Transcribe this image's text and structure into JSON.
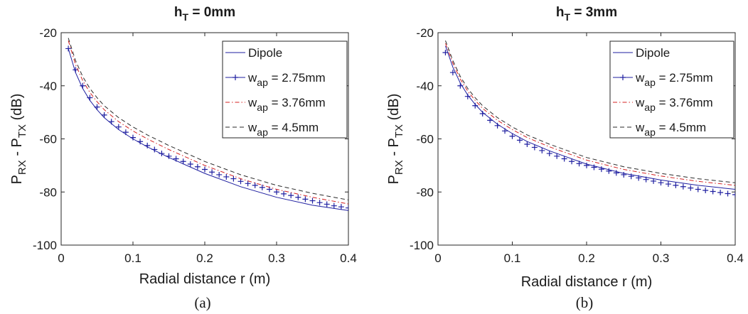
{
  "chart_data": [
    {
      "type": "line",
      "title": "h_T = 0mm",
      "title_main": "h",
      "title_sub": "T",
      "title_rest": " = 0mm",
      "xlabel": "Radial distance r (m)",
      "ylabel_parts": [
        "P",
        "RX",
        " - P",
        "TX",
        " (dB)"
      ],
      "caption": "(a)",
      "xlim": [
        0,
        0.4
      ],
      "ylim": [
        -100,
        -20
      ],
      "x_ticks": [
        "0",
        "0.1",
        "0.2",
        "0.3",
        "0.4"
      ],
      "y_ticks": [
        "-20",
        "-40",
        "-60",
        "-80",
        "-100"
      ],
      "grid": false,
      "legend_position": "top-right",
      "series": [
        {
          "name": "Dipole",
          "label_main": "Dipole",
          "label_sub": "",
          "label_rest": "",
          "color": "#1f1fa0",
          "style": "solid",
          "x": [
            0.01,
            0.02,
            0.03,
            0.04,
            0.05,
            0.06,
            0.08,
            0.1,
            0.12,
            0.15,
            0.2,
            0.25,
            0.3,
            0.35,
            0.4
          ],
          "y": [
            -26,
            -35,
            -41,
            -45.5,
            -49,
            -52,
            -56.5,
            -60,
            -63,
            -67,
            -73,
            -78,
            -82,
            -85,
            -87
          ]
        },
        {
          "name": "w_ap = 2.75mm",
          "label_main": "w",
          "label_sub": "ap",
          "label_rest": " = 2.75mm",
          "color": "#1f1fa0",
          "style": "plus",
          "x": [
            0.01,
            0.02,
            0.03,
            0.04,
            0.05,
            0.06,
            0.07,
            0.08,
            0.09,
            0.1,
            0.11,
            0.12,
            0.13,
            0.14,
            0.15,
            0.16,
            0.17,
            0.18,
            0.19,
            0.2,
            0.21,
            0.22,
            0.23,
            0.24,
            0.25,
            0.26,
            0.27,
            0.28,
            0.29,
            0.3,
            0.31,
            0.32,
            0.33,
            0.34,
            0.35,
            0.36,
            0.37,
            0.38,
            0.39,
            0.4
          ],
          "y": [
            -26,
            -34,
            -40,
            -44.5,
            -48,
            -51,
            -53.5,
            -55.5,
            -57.5,
            -59.5,
            -61,
            -62.5,
            -64,
            -65.5,
            -66.5,
            -67.5,
            -68.5,
            -69.5,
            -70.5,
            -71.5,
            -72.5,
            -73.5,
            -74.3,
            -75,
            -76,
            -76.8,
            -77.5,
            -78.3,
            -79,
            -80,
            -80.7,
            -81.3,
            -82,
            -82.7,
            -83.3,
            -84,
            -84.6,
            -85.2,
            -85.6,
            -86
          ]
        },
        {
          "name": "w_ap = 3.76mm",
          "label_main": "w",
          "label_sub": "ap",
          "label_rest": " = 3.76mm",
          "color": "#d42020",
          "style": "dashdot",
          "x": [
            0.01,
            0.02,
            0.03,
            0.04,
            0.05,
            0.06,
            0.08,
            0.1,
            0.12,
            0.15,
            0.2,
            0.25,
            0.3,
            0.35,
            0.4
          ],
          "y": [
            -23,
            -32,
            -38,
            -42.5,
            -46,
            -49,
            -53.5,
            -57,
            -60,
            -64,
            -70,
            -75,
            -79,
            -82,
            -84.5
          ]
        },
        {
          "name": "w_ap = 4.5mm",
          "label_main": "w",
          "label_sub": "ap",
          "label_rest": " = 4.5mm",
          "color": "#2a2a2a",
          "style": "dashed",
          "x": [
            0.01,
            0.02,
            0.03,
            0.04,
            0.05,
            0.06,
            0.08,
            0.1,
            0.12,
            0.15,
            0.2,
            0.25,
            0.3,
            0.35,
            0.4
          ],
          "y": [
            -22,
            -30.5,
            -36.5,
            -41,
            -44.5,
            -47.5,
            -52,
            -55.5,
            -58.5,
            -62.5,
            -68.5,
            -73.5,
            -77.5,
            -80.5,
            -83
          ]
        }
      ]
    },
    {
      "type": "line",
      "title": "h_T = 3mm",
      "title_main": "h",
      "title_sub": "T",
      "title_rest": " = 3mm",
      "xlabel": "Radial distance r (m)",
      "ylabel_parts": [
        "P",
        "RX",
        " - P",
        "TX",
        " (dB)"
      ],
      "caption": "(b)",
      "xlim": [
        0,
        0.4
      ],
      "ylim": [
        -100,
        -20
      ],
      "x_ticks": [
        "0",
        "0.1",
        "0.2",
        "0.3",
        "0.4"
      ],
      "y_ticks": [
        "-20",
        "-40",
        "-60",
        "-80",
        "-100"
      ],
      "grid": false,
      "legend_position": "top-right",
      "series": [
        {
          "name": "Dipole",
          "label_main": "Dipole",
          "label_sub": "",
          "label_rest": "",
          "color": "#1f1fa0",
          "style": "solid",
          "x": [
            0.01,
            0.02,
            0.03,
            0.04,
            0.05,
            0.06,
            0.08,
            0.1,
            0.12,
            0.15,
            0.2,
            0.25,
            0.3,
            0.35,
            0.4
          ],
          "y": [
            -25,
            -33,
            -39,
            -43.5,
            -47,
            -50,
            -54.5,
            -58,
            -61,
            -64.5,
            -69.5,
            -73,
            -75.5,
            -77.5,
            -79
          ]
        },
        {
          "name": "w_ap = 2.75mm",
          "label_main": "w",
          "label_sub": "ap",
          "label_rest": " = 2.75mm",
          "color": "#1f1fa0",
          "style": "plus",
          "x": [
            0.01,
            0.02,
            0.03,
            0.04,
            0.05,
            0.06,
            0.07,
            0.08,
            0.09,
            0.1,
            0.11,
            0.12,
            0.13,
            0.14,
            0.15,
            0.16,
            0.17,
            0.18,
            0.19,
            0.2,
            0.21,
            0.22,
            0.23,
            0.24,
            0.25,
            0.26,
            0.27,
            0.28,
            0.29,
            0.3,
            0.31,
            0.32,
            0.33,
            0.34,
            0.35,
            0.36,
            0.37,
            0.38,
            0.39,
            0.4
          ],
          "y": [
            -27.5,
            -35,
            -40,
            -44,
            -47.5,
            -50.5,
            -53,
            -55,
            -57,
            -59,
            -60.5,
            -62,
            -63.2,
            -64.4,
            -65.5,
            -66.5,
            -67.5,
            -68.5,
            -69.3,
            -70,
            -70.7,
            -71.4,
            -72.1,
            -72.8,
            -73.5,
            -74.1,
            -74.7,
            -75.3,
            -75.9,
            -76.5,
            -77,
            -77.5,
            -78,
            -78.5,
            -79,
            -79.4,
            -79.8,
            -80.2,
            -80.6,
            -81
          ]
        },
        {
          "name": "w_ap = 3.76mm",
          "label_main": "w",
          "label_sub": "ap",
          "label_rest": " = 3.76mm",
          "color": "#d42020",
          "style": "dashdot",
          "x": [
            0.01,
            0.02,
            0.03,
            0.04,
            0.05,
            0.06,
            0.08,
            0.1,
            0.12,
            0.15,
            0.2,
            0.25,
            0.3,
            0.35,
            0.4
          ],
          "y": [
            -24,
            -31.5,
            -37.5,
            -42,
            -45.5,
            -48.5,
            -53,
            -56.5,
            -59.5,
            -63,
            -68,
            -71.5,
            -74,
            -76,
            -77.5
          ]
        },
        {
          "name": "w_ap = 4.5mm",
          "label_main": "w",
          "label_sub": "ap",
          "label_rest": " = 4.5mm",
          "color": "#2a2a2a",
          "style": "dashed",
          "x": [
            0.01,
            0.02,
            0.03,
            0.04,
            0.05,
            0.06,
            0.08,
            0.1,
            0.12,
            0.15,
            0.2,
            0.25,
            0.3,
            0.35,
            0.4
          ],
          "y": [
            -23,
            -30.5,
            -36.5,
            -41,
            -44.5,
            -47.5,
            -52,
            -55.5,
            -58.5,
            -62,
            -67,
            -70.5,
            -73,
            -75,
            -76.5
          ]
        }
      ]
    }
  ]
}
